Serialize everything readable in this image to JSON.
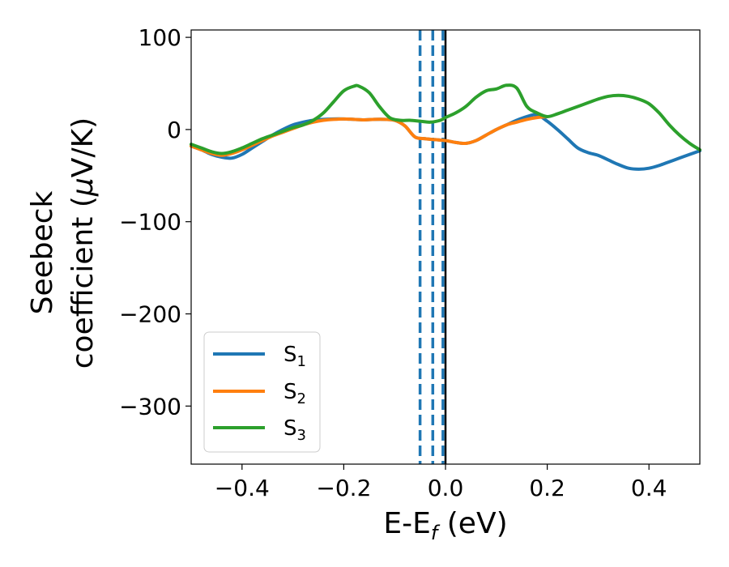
{
  "chart_data": {
    "type": "line",
    "xlabel": "E-E",
    "xlabel_sub": "f",
    "xlabel_unit": " (eV)",
    "ylabel_line1": "Seebeck",
    "ylabel_line2_prefix": "coefficient  (",
    "ylabel_mu": "μ",
    "ylabel_line2_suffix": "V/K)",
    "xlim": [
      -0.5,
      0.5
    ],
    "ylim": [
      -363,
      108
    ],
    "xticks": [
      -0.4,
      -0.2,
      0.0,
      0.2,
      0.4
    ],
    "xtick_labels": [
      "−0.4",
      "−0.2",
      "0.0",
      "0.2",
      "0.4"
    ],
    "yticks": [
      100,
      0,
      -100,
      -200,
      -300
    ],
    "ytick_labels": [
      "100",
      "0",
      "−100",
      "−200",
      "−300"
    ],
    "grid": false,
    "legend_position": "lower-left",
    "vlines": [
      {
        "x": -0.05,
        "style": "dashed",
        "color": "#1f77b4"
      },
      {
        "x": -0.025,
        "style": "dashed",
        "color": "#1f77b4"
      },
      {
        "x": -0.005,
        "style": "dashed",
        "color": "#1f77b4"
      },
      {
        "x": 0.0,
        "style": "solid",
        "color": "#000000"
      }
    ],
    "series": [
      {
        "name": "S",
        "sub": "1",
        "color": "#1f77b4",
        "x": [
          -0.5,
          -0.48,
          -0.46,
          -0.44,
          -0.42,
          -0.4,
          -0.38,
          -0.36,
          -0.34,
          -0.32,
          -0.3,
          -0.28,
          -0.26,
          -0.24,
          -0.22,
          -0.2,
          -0.18,
          -0.16,
          -0.14,
          -0.12,
          -0.1,
          -0.08,
          -0.06,
          -0.04,
          -0.02,
          0.0,
          0.02,
          0.04,
          0.06,
          0.08,
          0.1,
          0.12,
          0.14,
          0.16,
          0.18,
          0.2,
          0.22,
          0.24,
          0.26,
          0.28,
          0.3,
          0.32,
          0.34,
          0.36,
          0.38,
          0.4,
          0.42,
          0.44,
          0.46,
          0.48,
          0.5
        ],
        "y": [
          -18,
          -22,
          -27,
          -30,
          -31,
          -27,
          -20,
          -13,
          -6,
          0,
          5,
          8,
          10,
          11,
          11.5,
          11.5,
          11,
          10.5,
          11,
          11,
          10,
          4,
          -8,
          -10,
          -11,
          -12,
          -14,
          -15,
          -12,
          -6,
          0,
          5,
          10,
          14,
          16,
          9,
          0,
          -10,
          -20,
          -25,
          -28,
          -33,
          -38,
          -42,
          -43,
          -42,
          -39,
          -35,
          -31,
          -27,
          -23
        ]
      },
      {
        "name": "S",
        "sub": "2",
        "color": "#ff7f0e",
        "x": [
          -0.5,
          -0.48,
          -0.46,
          -0.44,
          -0.42,
          -0.4,
          -0.38,
          -0.36,
          -0.34,
          -0.32,
          -0.3,
          -0.28,
          -0.26,
          -0.24,
          -0.22,
          -0.2,
          -0.18,
          -0.16,
          -0.14,
          -0.12,
          -0.1,
          -0.08,
          -0.06,
          -0.04,
          -0.02,
          0.0,
          0.02,
          0.04,
          0.06,
          0.08,
          0.1,
          0.12,
          0.14,
          0.16,
          0.18,
          0.2
        ],
        "y": [
          -18,
          -22,
          -26,
          -28,
          -26,
          -22,
          -17,
          -12,
          -7,
          -3,
          1,
          5,
          8,
          10,
          11,
          11.5,
          11,
          10.5,
          11,
          11,
          10,
          4,
          -8,
          -10,
          -11,
          -12,
          -14,
          -15,
          -12,
          -6,
          0,
          5,
          8,
          11,
          13,
          14
        ]
      },
      {
        "name": "S",
        "sub": "3",
        "color": "#2ca02c",
        "x": [
          -0.5,
          -0.48,
          -0.46,
          -0.44,
          -0.42,
          -0.4,
          -0.38,
          -0.36,
          -0.34,
          -0.32,
          -0.3,
          -0.28,
          -0.26,
          -0.24,
          -0.22,
          -0.2,
          -0.18,
          -0.17,
          -0.15,
          -0.13,
          -0.11,
          -0.09,
          -0.07,
          -0.05,
          -0.03,
          -0.01,
          0.0,
          0.02,
          0.04,
          0.06,
          0.08,
          0.1,
          0.12,
          0.14,
          0.16,
          0.18,
          0.2,
          0.22,
          0.24,
          0.26,
          0.28,
          0.3,
          0.32,
          0.34,
          0.36,
          0.38,
          0.4,
          0.42,
          0.44,
          0.46,
          0.48,
          0.5
        ],
        "y": [
          -16,
          -20,
          -24,
          -26,
          -24,
          -20,
          -15,
          -10,
          -6,
          -2,
          2,
          5,
          10,
          18,
          30,
          42,
          47,
          47,
          40,
          25,
          13,
          10,
          10,
          9,
          8,
          10,
          13,
          18,
          25,
          35,
          42,
          44,
          48,
          45,
          25,
          18,
          14,
          17,
          21,
          25,
          29,
          33,
          36,
          37,
          36,
          33,
          28,
          18,
          5,
          -6,
          -15,
          -22
        ]
      }
    ]
  }
}
